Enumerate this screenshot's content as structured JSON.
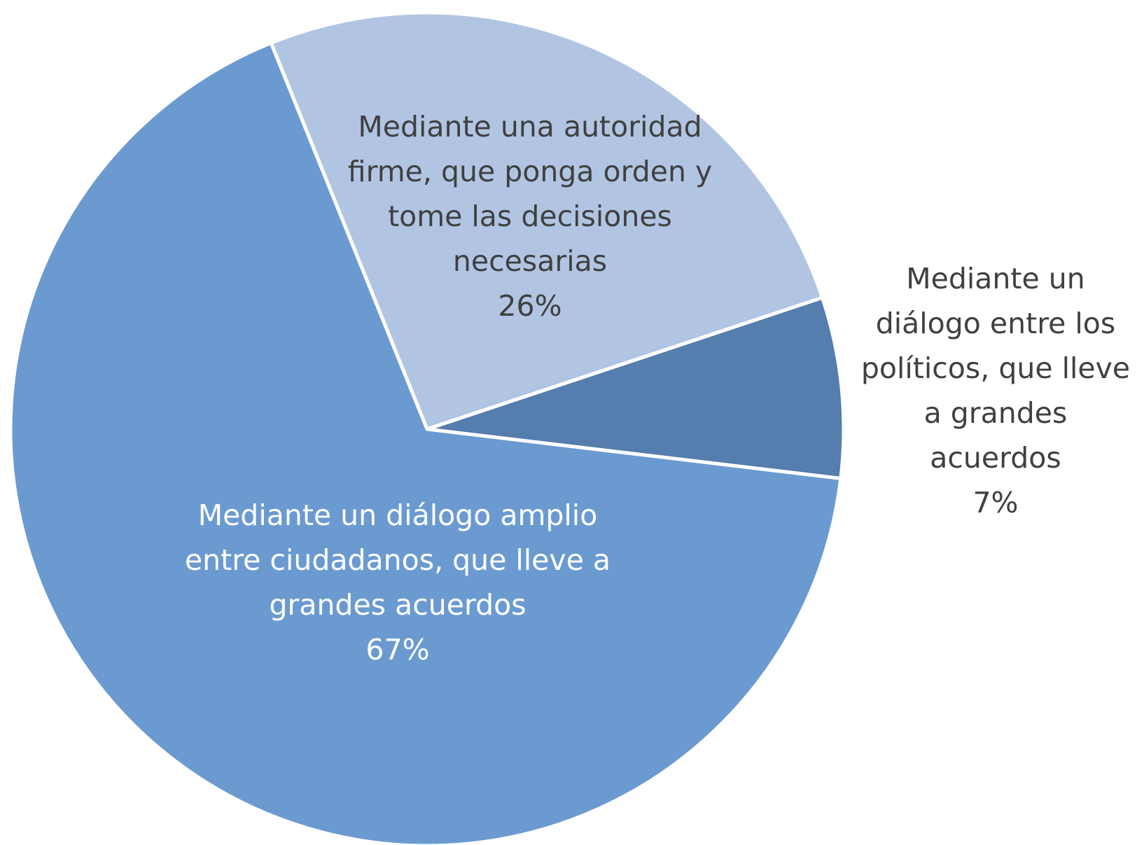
{
  "chart_data": {
    "type": "pie",
    "title": "",
    "slices": [
      {
        "label": "Mediante una autoridad firme, que ponga orden y tome las decisiones necesarias",
        "label_lines": [
          "Mediante una autoridad",
          "firme, que ponga orden y",
          "tome las decisiones",
          "necesarias"
        ],
        "value": 26,
        "value_label": "26%",
        "color": "#B1C5E3",
        "label_color": "#404040"
      },
      {
        "label": "Mediante un diálogo entre los políticos, que lleve a grandes acuerdos",
        "label_lines": [
          "Mediante un",
          "diálogo entre los",
          "políticos, que lleve",
          "a grandes",
          "acuerdos"
        ],
        "value": 7,
        "value_label": "7%",
        "color": "#557DAD",
        "label_color": "#404040"
      },
      {
        "label": "Mediante un diálogo amplio entre ciudadanos, que lleve a grandes acuerdos",
        "label_lines": [
          "Mediante un diálogo amplio",
          "entre ciudadanos, que lleve a",
          "grandes acuerdos"
        ],
        "value": 67,
        "value_label": "67%",
        "color": "#6B9AD0",
        "label_color": "#FFFFFF"
      }
    ],
    "start_angle_deg": -22,
    "direction": "clockwise",
    "legend": "none",
    "data_labels": "category name and percentage"
  }
}
